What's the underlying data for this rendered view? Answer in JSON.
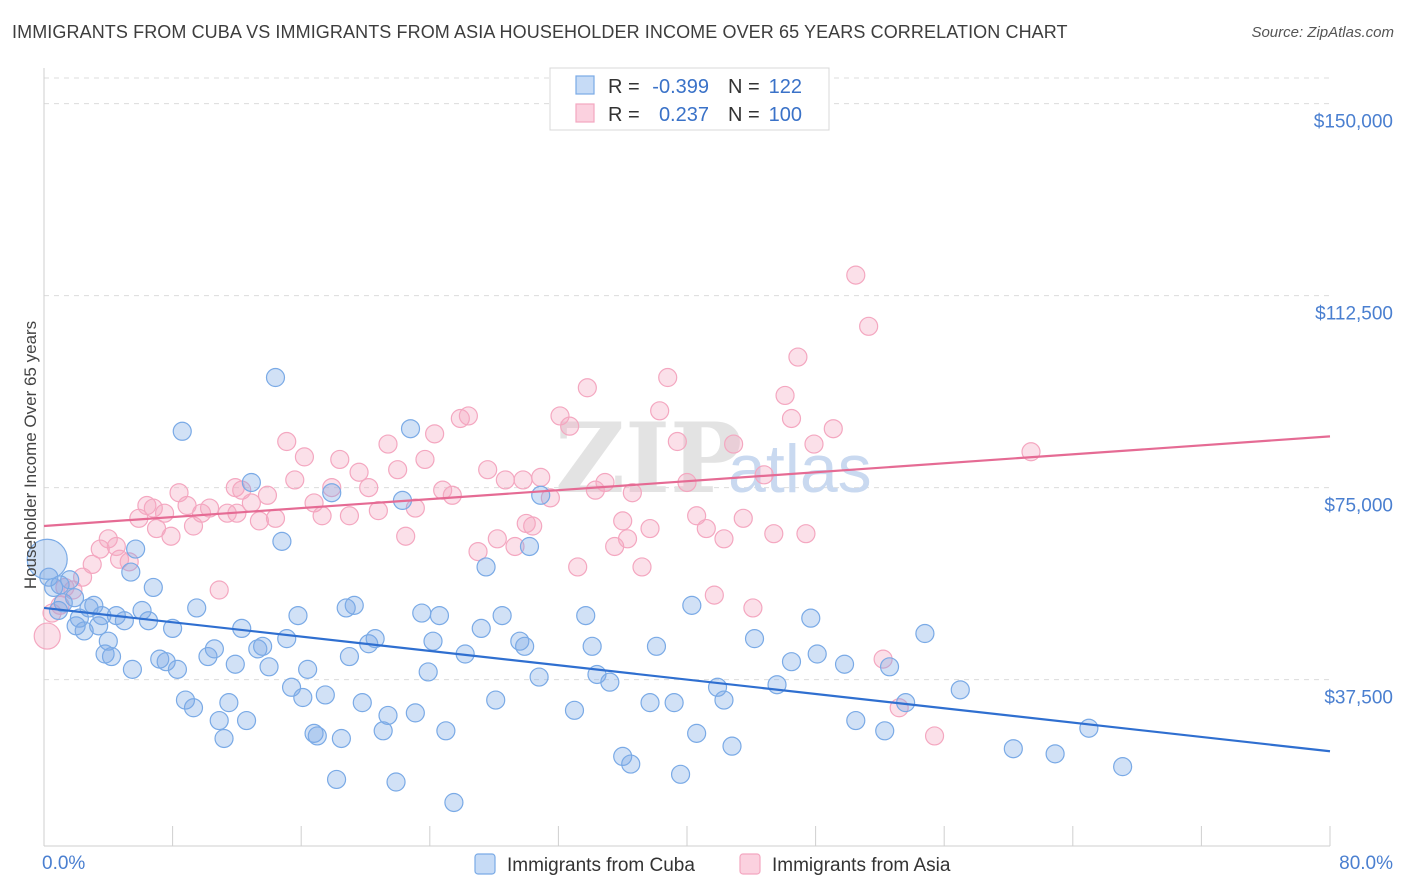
{
  "title": "IMMIGRANTS FROM CUBA VS IMMIGRANTS FROM ASIA HOUSEHOLDER INCOME OVER 65 YEARS CORRELATION CHART",
  "source": "Source: ZipAtlas.com",
  "watermark": "ZIPatlas",
  "chart_data": {
    "type": "scatter",
    "ylabel": "Householder Income Over 65 years",
    "xlabel": "",
    "xlim": [
      0,
      80
    ],
    "ylim": [
      5000,
      155000
    ],
    "x_tick_labels": [
      "0.0%",
      "80.0%"
    ],
    "y_ticks": [
      37500,
      75000,
      112500,
      150000
    ],
    "y_tick_labels": [
      "$37,500",
      "$75,000",
      "$112,500",
      "$150,000"
    ],
    "grid": "horizontal dashed",
    "legend_placement": "top-center",
    "stats": [
      {
        "r_label": "R =",
        "r": "-0.399",
        "n_label": "N =",
        "n": "122"
      },
      {
        "r_label": "R =",
        "r": "0.237",
        "n_label": "N =",
        "n": "100"
      }
    ],
    "series": [
      {
        "name": "Immigrants from Cuba",
        "color": "#7aaae6",
        "line_color": "#2f6fd0",
        "trend": {
          "x": [
            0,
            80
          ],
          "y": [
            51500,
            23500
          ]
        },
        "points": [
          [
            0.3,
            57500
          ],
          [
            0.6,
            55500
          ],
          [
            0.9,
            51000
          ],
          [
            1.2,
            52500
          ],
          [
            1.6,
            57000
          ],
          [
            1.9,
            53500
          ],
          [
            2.2,
            49500
          ],
          [
            2.5,
            47000
          ],
          [
            2.8,
            51500
          ],
          [
            3.1,
            52000
          ],
          [
            3.4,
            48000
          ],
          [
            3.6,
            50000
          ],
          [
            4.0,
            45000
          ],
          [
            4.2,
            42000
          ],
          [
            4.5,
            50000
          ],
          [
            5.0,
            49000
          ],
          [
            5.4,
            58500
          ],
          [
            5.7,
            63000
          ],
          [
            6.1,
            51000
          ],
          [
            6.5,
            49000
          ],
          [
            6.8,
            55500
          ],
          [
            7.2,
            41500
          ],
          [
            7.6,
            41000
          ],
          [
            8.0,
            47500
          ],
          [
            8.3,
            39500
          ],
          [
            8.8,
            33500
          ],
          [
            9.3,
            32000
          ],
          [
            9.5,
            51500
          ],
          [
            10.2,
            42000
          ],
          [
            10.6,
            43500
          ],
          [
            10.9,
            29500
          ],
          [
            11.2,
            26000
          ],
          [
            11.5,
            33000
          ],
          [
            11.9,
            40500
          ],
          [
            12.3,
            47500
          ],
          [
            12.6,
            29500
          ],
          [
            12.9,
            76000
          ],
          [
            13.3,
            43500
          ],
          [
            13.6,
            44000
          ],
          [
            14.0,
            40000
          ],
          [
            14.4,
            96500
          ],
          [
            14.8,
            64500
          ],
          [
            15.1,
            45500
          ],
          [
            15.4,
            36000
          ],
          [
            15.8,
            50000
          ],
          [
            16.1,
            34000
          ],
          [
            16.4,
            39500
          ],
          [
            16.8,
            27000
          ],
          [
            17.0,
            26500
          ],
          [
            17.5,
            34500
          ],
          [
            17.9,
            74000
          ],
          [
            18.2,
            18000
          ],
          [
            18.5,
            26000
          ],
          [
            18.8,
            51500
          ],
          [
            19.0,
            42000
          ],
          [
            19.3,
            52000
          ],
          [
            19.8,
            33000
          ],
          [
            20.2,
            44500
          ],
          [
            20.6,
            45500
          ],
          [
            21.1,
            27500
          ],
          [
            21.4,
            30500
          ],
          [
            21.9,
            17500
          ],
          [
            22.3,
            72500
          ],
          [
            22.8,
            86500
          ],
          [
            23.1,
            31000
          ],
          [
            23.5,
            50500
          ],
          [
            23.9,
            39000
          ],
          [
            24.2,
            45000
          ],
          [
            24.6,
            50000
          ],
          [
            25.0,
            27500
          ],
          [
            25.5,
            13500
          ],
          [
            26.2,
            42500
          ],
          [
            27.2,
            47500
          ],
          [
            27.5,
            59500
          ],
          [
            28.1,
            33500
          ],
          [
            28.5,
            50000
          ],
          [
            29.6,
            45000
          ],
          [
            29.9,
            44000
          ],
          [
            30.2,
            63500
          ],
          [
            30.8,
            38000
          ],
          [
            30.9,
            73500
          ],
          [
            33.0,
            31500
          ],
          [
            33.7,
            50000
          ],
          [
            34.1,
            44000
          ],
          [
            34.4,
            38500
          ],
          [
            35.2,
            37000
          ],
          [
            36.0,
            22500
          ],
          [
            36.5,
            21000
          ],
          [
            37.7,
            33000
          ],
          [
            38.1,
            44000
          ],
          [
            39.2,
            33000
          ],
          [
            39.6,
            19000
          ],
          [
            40.3,
            52000
          ],
          [
            40.6,
            27000
          ],
          [
            41.9,
            36000
          ],
          [
            42.3,
            33500
          ],
          [
            42.8,
            24500
          ],
          [
            44.2,
            45500
          ],
          [
            45.6,
            36500
          ],
          [
            46.5,
            41000
          ],
          [
            47.7,
            49500
          ],
          [
            48.1,
            42500
          ],
          [
            49.8,
            40500
          ],
          [
            50.5,
            29500
          ],
          [
            52.3,
            27500
          ],
          [
            52.6,
            40000
          ],
          [
            53.6,
            33000
          ],
          [
            54.8,
            46500
          ],
          [
            57.0,
            35500
          ],
          [
            60.3,
            24000
          ],
          [
            62.9,
            23000
          ],
          [
            65.0,
            28000
          ],
          [
            67.1,
            20500
          ],
          [
            0.2,
            61000
          ],
          [
            1.0,
            56000
          ],
          [
            8.6,
            86000
          ],
          [
            2.0,
            48000
          ],
          [
            3.8,
            42500
          ],
          [
            5.5,
            39500
          ]
        ]
      },
      {
        "name": "Immigrants from Asia",
        "color": "#f4a7c0",
        "line_color": "#e56b94",
        "trend": {
          "x": [
            0,
            80
          ],
          "y": [
            67500,
            85000
          ]
        },
        "points": [
          [
            0.2,
            46000
          ],
          [
            0.5,
            50500
          ],
          [
            1.0,
            52000
          ],
          [
            1.3,
            55500
          ],
          [
            1.8,
            55000
          ],
          [
            2.4,
            57500
          ],
          [
            3.0,
            60000
          ],
          [
            3.5,
            63000
          ],
          [
            4.0,
            65000
          ],
          [
            4.7,
            61000
          ],
          [
            5.3,
            60500
          ],
          [
            5.9,
            69000
          ],
          [
            6.4,
            71500
          ],
          [
            7.0,
            67000
          ],
          [
            7.5,
            70000
          ],
          [
            7.9,
            65500
          ],
          [
            8.4,
            74000
          ],
          [
            8.9,
            71500
          ],
          [
            9.3,
            67500
          ],
          [
            9.8,
            70000
          ],
          [
            10.3,
            71000
          ],
          [
            10.9,
            55000
          ],
          [
            11.4,
            70000
          ],
          [
            11.9,
            75000
          ],
          [
            12.3,
            74500
          ],
          [
            12.9,
            72000
          ],
          [
            13.4,
            68500
          ],
          [
            13.9,
            73500
          ],
          [
            14.4,
            69000
          ],
          [
            15.1,
            84000
          ],
          [
            15.6,
            76500
          ],
          [
            16.2,
            81000
          ],
          [
            16.8,
            72000
          ],
          [
            17.3,
            69500
          ],
          [
            17.9,
            75000
          ],
          [
            18.4,
            80500
          ],
          [
            19.0,
            69500
          ],
          [
            19.6,
            78000
          ],
          [
            20.2,
            75000
          ],
          [
            20.8,
            70500
          ],
          [
            21.4,
            83500
          ],
          [
            22.0,
            78500
          ],
          [
            22.5,
            65500
          ],
          [
            23.1,
            71000
          ],
          [
            23.7,
            80500
          ],
          [
            24.3,
            85500
          ],
          [
            24.8,
            74500
          ],
          [
            25.4,
            73500
          ],
          [
            25.9,
            88500
          ],
          [
            26.4,
            89000
          ],
          [
            27.0,
            62500
          ],
          [
            27.6,
            78500
          ],
          [
            28.2,
            65000
          ],
          [
            28.7,
            76500
          ],
          [
            29.3,
            63500
          ],
          [
            29.8,
            76500
          ],
          [
            30.4,
            67500
          ],
          [
            30.9,
            77000
          ],
          [
            31.5,
            73000
          ],
          [
            32.1,
            89000
          ],
          [
            32.7,
            87000
          ],
          [
            33.2,
            59500
          ],
          [
            33.8,
            94500
          ],
          [
            34.3,
            74500
          ],
          [
            34.9,
            76000
          ],
          [
            35.5,
            63500
          ],
          [
            36.0,
            68500
          ],
          [
            36.6,
            74000
          ],
          [
            37.2,
            59500
          ],
          [
            37.7,
            67000
          ],
          [
            38.3,
            90000
          ],
          [
            38.8,
            96500
          ],
          [
            39.4,
            84000
          ],
          [
            40.0,
            76000
          ],
          [
            40.6,
            69500
          ],
          [
            41.2,
            67000
          ],
          [
            41.7,
            54000
          ],
          [
            42.3,
            65000
          ],
          [
            42.9,
            83500
          ],
          [
            43.5,
            69000
          ],
          [
            44.1,
            51500
          ],
          [
            44.8,
            77500
          ],
          [
            45.4,
            66000
          ],
          [
            46.1,
            93000
          ],
          [
            46.5,
            88500
          ],
          [
            46.9,
            100500
          ],
          [
            47.4,
            66000
          ],
          [
            47.9,
            83500
          ],
          [
            49.1,
            86500
          ],
          [
            50.5,
            116500
          ],
          [
            51.3,
            106500
          ],
          [
            52.2,
            41500
          ],
          [
            53.2,
            32000
          ],
          [
            55.4,
            26500
          ],
          [
            61.4,
            82000
          ],
          [
            4.5,
            63500
          ],
          [
            6.8,
            71000
          ],
          [
            12.0,
            70000
          ],
          [
            30.0,
            68000
          ],
          [
            36.3,
            65000
          ]
        ]
      }
    ]
  },
  "legend_bottom": {
    "cuba": "Immigrants from Cuba",
    "asia": "Immigrants from Asia"
  }
}
